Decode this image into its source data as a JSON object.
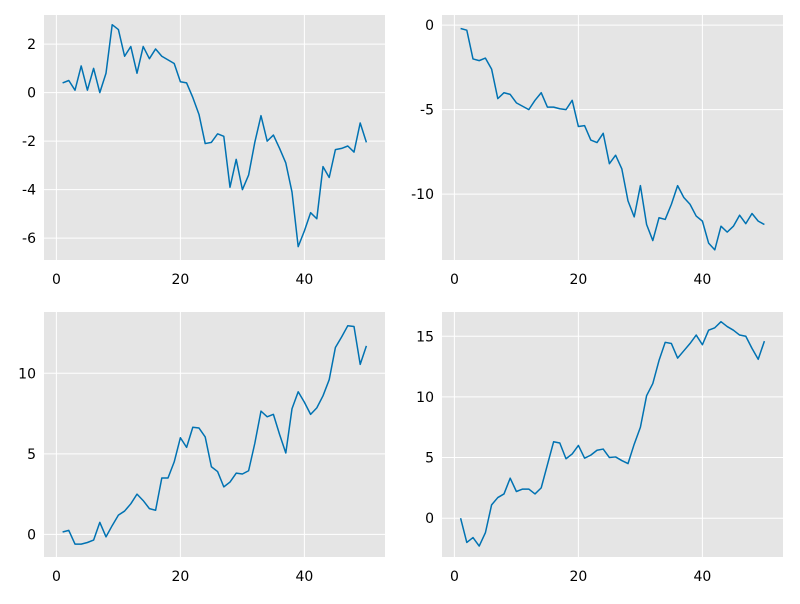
{
  "colors": {
    "series": "#0072b2",
    "background": "#e5e5e5",
    "grid": "#ffffff"
  },
  "chart_data": [
    {
      "type": "line",
      "title": "",
      "xlabel": "",
      "ylabel": "",
      "xlim": [
        -2,
        53
      ],
      "ylim": [
        -6.9,
        3.2
      ],
      "xticks": [
        0,
        20,
        40
      ],
      "xtick_labels": [
        "0",
        "20",
        "40"
      ],
      "yticks": [
        -6,
        -4,
        -2,
        0,
        2
      ],
      "ytick_labels": [
        "-6",
        "-4",
        "-2",
        "0",
        "2"
      ],
      "grid": true,
      "legend": "none",
      "series": [
        {
          "values": [
            0.4,
            0.5,
            0.1,
            1.1,
            0.1,
            1.0,
            0.0,
            0.8,
            2.8,
            2.6,
            1.5,
            1.9,
            0.8,
            1.9,
            1.4,
            1.8,
            1.5,
            1.35,
            1.2,
            0.45,
            0.4,
            -0.2,
            -0.9,
            -2.1,
            -2.05,
            -1.7,
            -1.8,
            -3.9,
            -2.75,
            -4.0,
            -3.4,
            -2.05,
            -0.95,
            -2.0,
            -1.75,
            -2.3,
            -2.9,
            -4.1,
            -6.35,
            -5.7,
            -4.95,
            -5.2,
            -3.05,
            -3.5,
            -2.35,
            -2.3,
            -2.2,
            -2.45,
            -1.25,
            -2.05
          ]
        }
      ]
    },
    {
      "type": "line",
      "title": "",
      "xlabel": "",
      "ylabel": "",
      "xlim": [
        -2,
        53
      ],
      "ylim": [
        -13.9,
        0.6
      ],
      "xticks": [
        0,
        20,
        40
      ],
      "xtick_labels": [
        "0",
        "20",
        "40"
      ],
      "yticks": [
        -10,
        -5,
        0
      ],
      "ytick_labels": [
        "-10",
        "-5",
        "0"
      ],
      "grid": true,
      "legend": "none",
      "series": [
        {
          "values": [
            -0.2,
            -0.3,
            -2.0,
            -2.1,
            -1.95,
            -2.6,
            -4.35,
            -4.0,
            -4.1,
            -4.6,
            -4.8,
            -5.0,
            -4.45,
            -4.0,
            -4.85,
            -4.85,
            -4.95,
            -5.0,
            -4.45,
            -6.0,
            -5.95,
            -6.8,
            -6.95,
            -6.4,
            -8.2,
            -7.7,
            -8.5,
            -10.4,
            -11.35,
            -9.5,
            -11.8,
            -12.75,
            -11.4,
            -11.5,
            -10.6,
            -9.5,
            -10.2,
            -10.6,
            -11.3,
            -11.6,
            -12.9,
            -13.3,
            -11.9,
            -12.25,
            -11.9,
            -11.25,
            -11.75,
            -11.15,
            -11.6,
            -11.8
          ]
        }
      ]
    },
    {
      "type": "line",
      "title": "",
      "xlabel": "",
      "ylabel": "",
      "xlim": [
        -2,
        53
      ],
      "ylim": [
        -1.4,
        13.8
      ],
      "xticks": [
        0,
        20,
        40
      ],
      "xtick_labels": [
        "0",
        "20",
        "40"
      ],
      "yticks": [
        0,
        5,
        10
      ],
      "ytick_labels": [
        "0",
        "5",
        "10"
      ],
      "grid": true,
      "legend": "none",
      "series": [
        {
          "values": [
            0.15,
            0.25,
            -0.6,
            -0.6,
            -0.5,
            -0.35,
            0.75,
            -0.15,
            0.55,
            1.2,
            1.45,
            1.9,
            2.5,
            2.1,
            1.6,
            1.5,
            3.5,
            3.5,
            4.5,
            6.0,
            5.4,
            6.65,
            6.6,
            6.05,
            4.2,
            3.9,
            2.95,
            3.25,
            3.8,
            3.75,
            3.95,
            5.65,
            7.65,
            7.3,
            7.45,
            6.2,
            5.05,
            7.8,
            8.85,
            8.2,
            7.45,
            7.85,
            8.6,
            9.6,
            11.6,
            12.25,
            12.95,
            12.9,
            10.55,
            11.7
          ]
        }
      ]
    },
    {
      "type": "line",
      "title": "",
      "xlabel": "",
      "ylabel": "",
      "xlim": [
        -2,
        53
      ],
      "ylim": [
        -3.2,
        17.0
      ],
      "xticks": [
        0,
        20,
        40
      ],
      "xtick_labels": [
        "0",
        "20",
        "40"
      ],
      "yticks": [
        0,
        5,
        10,
        15
      ],
      "ytick_labels": [
        "0",
        "5",
        "10",
        "15"
      ],
      "grid": true,
      "legend": "none",
      "series": [
        {
          "values": [
            0.0,
            -2.0,
            -1.6,
            -2.3,
            -1.2,
            1.1,
            1.7,
            2.0,
            3.3,
            2.2,
            2.4,
            2.4,
            2.0,
            2.5,
            4.4,
            6.3,
            6.2,
            4.9,
            5.3,
            6.0,
            4.95,
            5.2,
            5.6,
            5.7,
            5.0,
            5.05,
            4.75,
            4.5,
            6.1,
            7.5,
            10.1,
            11.1,
            13.0,
            14.5,
            14.4,
            13.2,
            13.8,
            14.4,
            15.1,
            14.3,
            15.5,
            15.7,
            16.2,
            15.8,
            15.5,
            15.1,
            15.0,
            14.0,
            13.1,
            14.6
          ]
        }
      ]
    }
  ]
}
